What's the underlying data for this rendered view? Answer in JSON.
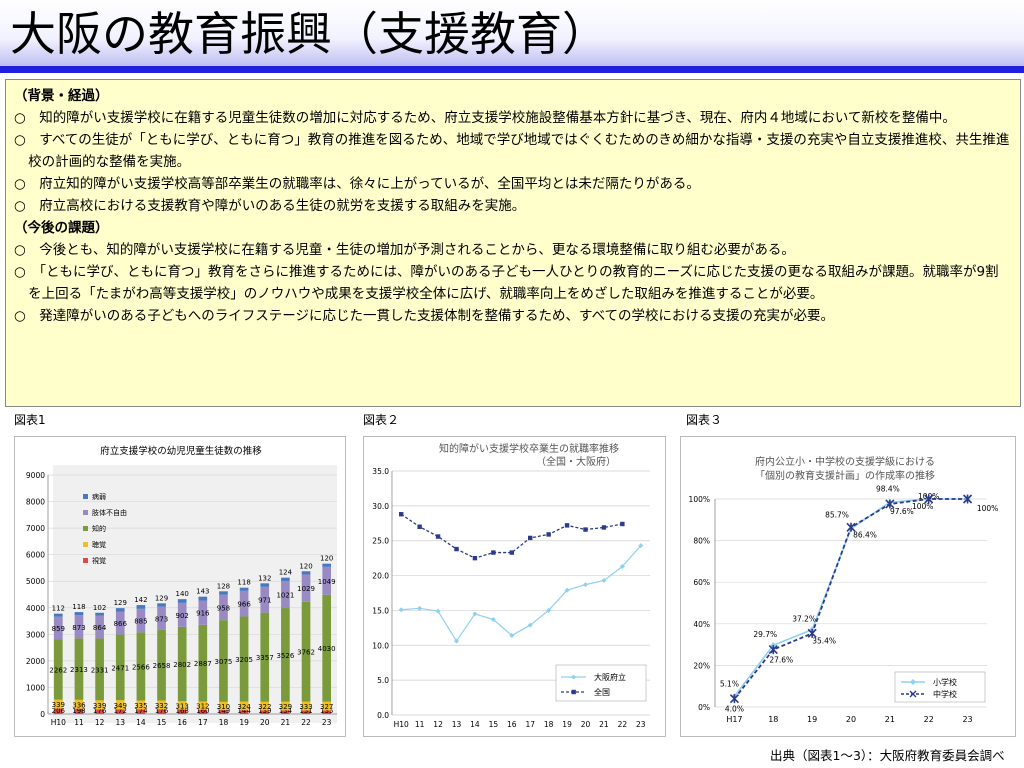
{
  "title": "大阪の教育振興（支援教育）",
  "background": {
    "heading": "（背景・経過）",
    "items": [
      "○　知的障がい支援学校に在籍する児童生徒数の増加に対応するため、府立支援学校施設整備基本方針に基づき、現在、府内４地域において新校を整備中。",
      "○　すべての生徒が「ともに学び、ともに育つ」教育の推進を図るため、地域で学び地域ではぐくむためのきめ細かな指導・支援の充実や自立支援推進校、共生推進校の計画的な整備を実施。",
      "○　府立知的障がい支援学校高等部卒業生の就職率は、徐々に上がっているが、全国平均とは未だ隔たりがある。",
      "○　府立高校における支援教育や障がいのある生徒の就労を支援する取組みを実施。"
    ]
  },
  "future": {
    "heading": "（今後の課題）",
    "items": [
      "○　今後とも、知的障がい支援学校に在籍する児童・生徒の増加が予測されることから、更なる環境整備に取り組む必要がある。",
      "○　「ともに学び、ともに育つ」教育をさらに推進するためには、障がいのある子ども一人ひとりの教育的ニーズに応じた支援の更なる取組みが課題。就職率が9割を上回る「たまがわ高等支援学校」のノウハウや成果を支援学校全体に広げ、就職率向上をめざした取組みを推進することが必要。",
      "○　発達障がいのある子どもへのライフステージに応じた一貫した支援体制を整備するため、すべての学校における支援の充実が必要。"
    ]
  },
  "figure_labels": [
    "図表1",
    "図表２",
    "図表３"
  ],
  "source": "出典（図表1～3）：大阪府教育委員会調べ",
  "colors": {
    "title_bar": "#2020e0",
    "text_box": "#ffffcc"
  },
  "chart_data": [
    {
      "type": "bar",
      "stacked": true,
      "title": "府立支援学校の幼児児童生徒数の推移",
      "categories": [
        "H10",
        "11",
        "12",
        "13",
        "14",
        "15",
        "16",
        "17",
        "18",
        "19",
        "20",
        "21",
        "22",
        "23"
      ],
      "ylim": [
        0,
        9000
      ],
      "yticks": [
        0,
        1000,
        2000,
        3000,
        4000,
        5000,
        6000,
        7000,
        8000,
        9000
      ],
      "legend_position": "upper-left",
      "series": [
        {
          "name": "視覚",
          "color": "#e04848",
          "values": [
            206,
            198,
            176,
            172,
            174,
            176,
            168,
            160,
            149,
            144,
            139,
            134,
            131,
            135
          ],
          "labels": [
            "206",
            "198",
            "176",
            "172",
            "174",
            "176",
            "168",
            "160",
            "149",
            "144",
            "139",
            "134",
            "131",
            "135"
          ]
        },
        {
          "name": "聴覚",
          "color": "#f0c020",
          "values": [
            339,
            336,
            339,
            349,
            335,
            332,
            313,
            312,
            310,
            324,
            322,
            329,
            333,
            327
          ],
          "labels": [
            "339",
            "336",
            "339",
            "349",
            "335",
            "332",
            "313",
            "312",
            "310",
            "324",
            "322",
            "329",
            "333",
            "327"
          ]
        },
        {
          "name": "知的",
          "color": "#7a9a3c",
          "values": [
            2262,
            2313,
            2331,
            2471,
            2566,
            2658,
            2802,
            2887,
            3075,
            3205,
            3357,
            3526,
            3762,
            4030
          ],
          "labels": [
            "2262",
            "2313",
            "2331",
            "2471",
            "2566",
            "2658",
            "2802",
            "2887",
            "3075",
            "3205",
            "3357",
            "3526",
            "3762",
            "4030"
          ]
        },
        {
          "name": "肢体不自由",
          "color": "#9a8ac4",
          "values": [
            859,
            873,
            864,
            866,
            885,
            873,
            902,
            916,
            958,
            966,
            971,
            1021,
            1029,
            1049
          ],
          "labels": [
            "859",
            "873",
            "864",
            "866",
            "885",
            "873",
            "902",
            "916",
            "958",
            "966",
            "971",
            "1021",
            "1029",
            "1049"
          ]
        },
        {
          "name": "病弱",
          "color": "#4a78c0",
          "values": [
            112,
            118,
            102,
            129,
            142,
            129,
            140,
            143,
            128,
            118,
            132,
            124,
            120,
            120
          ],
          "labels": [
            "112",
            "118",
            "102",
            "129",
            "142",
            "129",
            "140",
            "143",
            "128",
            "118",
            "132",
            "124",
            "120",
            "120"
          ]
        }
      ]
    },
    {
      "type": "line",
      "title": [
        "知的障がい支援学校卒業生の就職率推移",
        "（全国・大阪府）"
      ],
      "categories": [
        "H10",
        "11",
        "12",
        "13",
        "14",
        "15",
        "16",
        "17",
        "18",
        "19",
        "20",
        "21",
        "22",
        "23"
      ],
      "ylim": [
        0,
        35
      ],
      "yticks": [
        "0.0",
        "5.0",
        "10.0",
        "15.0",
        "20.0",
        "25.0",
        "30.0",
        "35.0"
      ],
      "legend_position": "bottom-right",
      "series": [
        {
          "name": "大阪府立",
          "color": "#8ed0f0",
          "style": "solid",
          "values": [
            15.1,
            15.3,
            14.9,
            10.6,
            14.5,
            13.7,
            11.4,
            12.9,
            15.0,
            17.9,
            18.7,
            19.3,
            21.3,
            24.3
          ]
        },
        {
          "name": "全国",
          "color": "#2a3a8c",
          "style": "dashed",
          "values": [
            28.8,
            27.0,
            25.6,
            23.8,
            22.5,
            23.3,
            23.3,
            25.4,
            25.9,
            27.2,
            26.6,
            26.9,
            27.4,
            null
          ]
        }
      ]
    },
    {
      "type": "line",
      "title": [
        "府内公立小・中学校の支援学級における",
        "「個別の教育支援計画」の作成率の推移"
      ],
      "categories": [
        "H17",
        "18",
        "19",
        "20",
        "21",
        "22",
        "23"
      ],
      "ylim": [
        0,
        100
      ],
      "yticks": [
        "0%",
        "20%",
        "40%",
        "60%",
        "80%",
        "100%"
      ],
      "legend_position": "bottom-right",
      "series": [
        {
          "name": "小学校",
          "color": "#8ed0f0",
          "style": "solid",
          "values": [
            5.1,
            29.7,
            37.2,
            85.7,
            98.4,
            100,
            100
          ],
          "labels": [
            "5.1%",
            "29.7%",
            "37.2%",
            "85.7%",
            "98.4%",
            "100%",
            "100%"
          ]
        },
        {
          "name": "中学校",
          "color": "#2a3a8c",
          "style": "dashed",
          "values": [
            4.0,
            27.6,
            35.4,
            86.4,
            97.6,
            100,
            100
          ],
          "labels": [
            "4.0%",
            "27.6%",
            "35.4%",
            "86.4%",
            "97.6%",
            "100%",
            ""
          ]
        }
      ]
    }
  ]
}
